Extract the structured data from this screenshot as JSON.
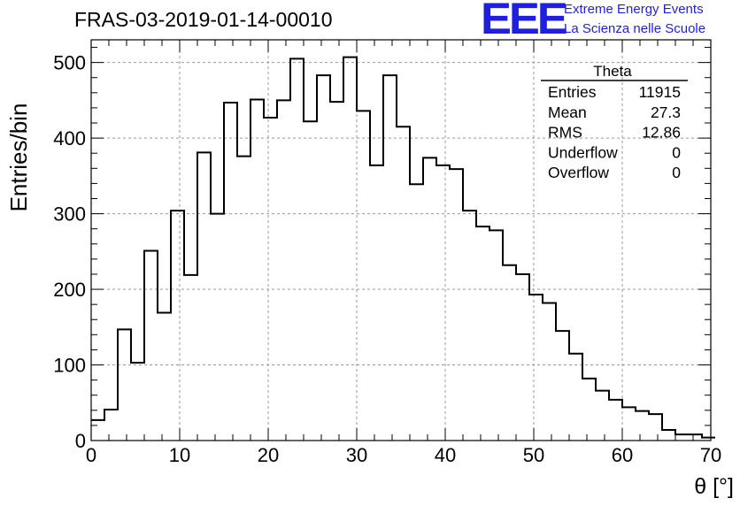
{
  "header": {
    "title": "FRAS-03-2019-01-14-00010",
    "logo_text": "EEE",
    "subtitle_line1": "Extreme Energy Events",
    "subtitle_line2": "La Scienza nelle Scuole",
    "brand_color": "#1f1fe0"
  },
  "stats": {
    "name": "Theta",
    "rows": [
      {
        "label": "Entries",
        "value": "11915"
      },
      {
        "label": "Mean",
        "value": "27.3"
      },
      {
        "label": "RMS",
        "value": "12.86"
      },
      {
        "label": "Underflow",
        "value": "0"
      },
      {
        "label": "Overflow",
        "value": "0"
      }
    ]
  },
  "chart_data": {
    "type": "histogram",
    "title": "FRAS-03-2019-01-14-00010",
    "xlabel": "θ [°]",
    "ylabel": "Entries/bin",
    "xlim": [
      0,
      70
    ],
    "ylim": [
      0,
      530
    ],
    "xticks": [
      0,
      10,
      20,
      30,
      40,
      50,
      60,
      70
    ],
    "yticks": [
      0,
      100,
      200,
      300,
      400,
      500
    ],
    "grid": true,
    "bin_width": 1.5,
    "bin_edges_start": 0,
    "values": [
      27,
      41,
      147,
      103,
      251,
      169,
      304,
      219,
      381,
      300,
      447,
      376,
      451,
      427,
      450,
      505,
      422,
      483,
      448,
      507,
      436,
      364,
      483,
      415,
      339,
      374,
      364,
      359,
      304,
      283,
      278,
      232,
      220,
      193,
      182,
      145,
      115,
      82,
      66,
      54,
      44,
      39,
      35,
      14,
      8,
      8,
      4
    ]
  }
}
